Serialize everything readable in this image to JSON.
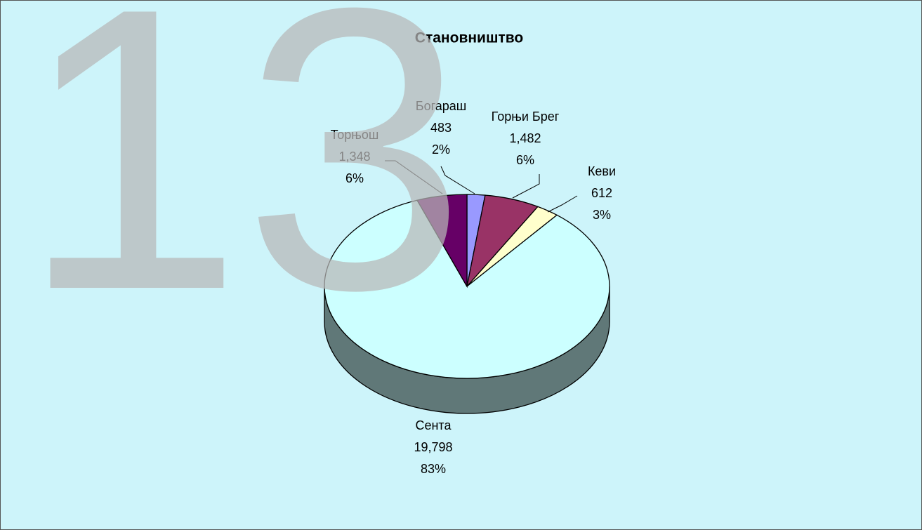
{
  "watermark": "13",
  "chart_data": {
    "type": "pie3d",
    "title": "Становништво",
    "categories": [
      "Богараш",
      "Горњи Брег",
      "Кеви",
      "Сента",
      "Торњош"
    ],
    "values": [
      483,
      1482,
      612,
      19798,
      1348
    ],
    "value_labels": [
      "483",
      "1,482",
      "612",
      "19,798",
      "1,348"
    ],
    "percent_labels": [
      "2%",
      "6%",
      "3%",
      "83%",
      "6%"
    ],
    "colors": [
      "#9999ff",
      "#993366",
      "#ffffcc",
      "#ccffff",
      "#660066"
    ]
  }
}
